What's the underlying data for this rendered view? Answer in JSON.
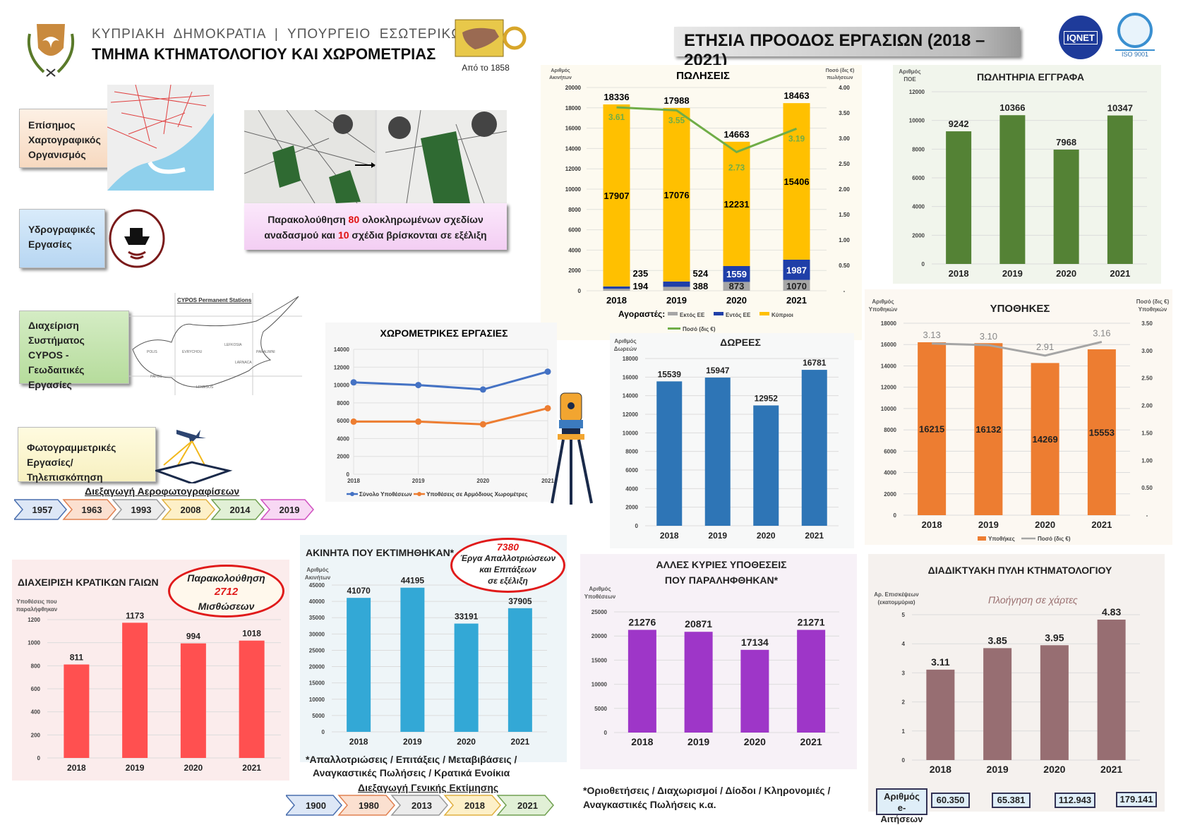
{
  "header": {
    "org_line": "ΚΥΠΡΙΑΚΗ  ΔΗΜΟΚΡΑΤΙΑ  |  ΥΠΟΥΡΓΕΙΟ  ΕΣΩΤΕΡΙΚΩΝ",
    "dept": "ΤΜΗΜΑ ΚΤΗΜΑΤΟΛΟΓΙΟΥ ΚΑΙ ΧΩΡΟΜΕΤΡΙΑΣ",
    "since": "Από το 1858",
    "title": "ΕΤΗΣΙΑ ΠΡΟΟΔΟΣ ΕΡΓΑΣΙΩΝ (2018 – 2021)",
    "logo_iqnet": "IQNET",
    "logo_iso": "ISO 9001"
  },
  "left": {
    "box_cartography": "Επίσημος Χαρτογραφικός Οργανισμός",
    "box_hydro": "Υδρογραφικές Εργασίες",
    "box_cypos": "Διαχείριση Συστήματος CYPOS - Γεωδαιτικές Εργασίες",
    "cypos_map_title": "CYPOS Permanent Stations",
    "box_photo": "Φωτογραμμετρικές Εργασίες/Τηλεπισκόπηση",
    "aerial_title": "Διεξαγωγή Αεροφωτογραφίσεων",
    "aerial_years": [
      "1957",
      "1963",
      "1993",
      "2008",
      "2014",
      "2019"
    ],
    "consolidation_pre": "Παρακολούθηση ",
    "consolidation_n1": "80",
    "consolidation_mid": " ολοκληρωμένων σχεδίων αναδασμού και ",
    "consolidation_n2": "10",
    "consolidation_post": " σχέδια βρίσκονται σε εξέλιξη"
  },
  "valuation": {
    "timeline_title": "Διεξαγωγή Γενικής Εκτίμησης",
    "years": [
      "1900",
      "1980",
      "2013",
      "2018",
      "2021"
    ],
    "footnote_1": "*Απαλλοτριώσεις / Επιτάξεις / Μεταβιβάσεις /",
    "footnote_2": "Αναγκαστικές Πωλήσεις / Κρατικά Ενοίκια",
    "oval_num": "7380",
    "oval_text": [
      "Έργα Απαλλοτριώσεων",
      "και Επιτάξεων",
      "σε εξέλιξη"
    ]
  },
  "state_land": {
    "oval_1": "Παρακολούθηση",
    "oval_num": "2712",
    "oval_2": "Μισθώσεων"
  },
  "other_cases": {
    "footnote_1": "*Οριοθετήσεις / Διαχωρισμοί / Δίοδοι / Κληρονομιές /",
    "footnote_2": "Αναγκαστικές Πωλήσεις κ.α."
  },
  "portal": {
    "subtitle": "Πλοήγηση σε χάρτες",
    "eapps_label_1": "Αριθμός",
    "eapps_label_2": "e-Αιτήσεων",
    "eapps": [
      "60.350",
      "65.381",
      "112.943",
      "179.141"
    ]
  },
  "colors": {
    "sales_cy": "#ffc000",
    "sales_eu": "#1f3fa8",
    "sales_noneu": "#a6a6a6",
    "sales_line": "#70ad47",
    "deeds": "#548235",
    "donations": "#2e75b6",
    "mortgages": "#ed7d31",
    "mort_line": "#a5a5a5",
    "survey_total": "#4472c4",
    "survey_dist": "#ed7d31",
    "state": "#ff5050",
    "valued": "#33a8d6",
    "other": "#9e36c8",
    "portal": "#976e72"
  },
  "chart_data": [
    {
      "id": "sales",
      "type": "bar",
      "stacked": true,
      "title": "ΠΩΛΗΣΕΙΣ",
      "ylabel": "Αριθμός Ακινήτων",
      "y2label": "Ποσό (δις €) πωλήσεων",
      "categories": [
        "2018",
        "2019",
        "2020",
        "2021"
      ],
      "ylim": [
        0,
        20000
      ],
      "yticks": [
        "0",
        "2000",
        "4000",
        "6000",
        "8000",
        "10000",
        "12000",
        "14000",
        "16000",
        "18000",
        "20000"
      ],
      "y2lim": [
        0,
        4
      ],
      "y2ticks": [
        "-",
        "0.50",
        "1.00",
        "1.50",
        "2.00",
        "2.50",
        "3.00",
        "3.50",
        "4.00"
      ],
      "legend_prefix": "Αγοραστές:",
      "series": [
        {
          "name": "Εκτός ΕΕ",
          "values": [
            194,
            388,
            873,
            1070
          ]
        },
        {
          "name": "Εντός ΕΕ",
          "values": [
            235,
            524,
            1559,
            1987
          ]
        },
        {
          "name": "Κύπριοι",
          "values": [
            17907,
            17076,
            12231,
            15406
          ]
        }
      ],
      "totals": [
        18336,
        17988,
        14663,
        18463
      ],
      "line": {
        "name": "Ποσό (δις €)",
        "values": [
          3.61,
          3.55,
          2.73,
          3.19
        ],
        "labels": [
          "3.61",
          "3.55",
          "2.73",
          "3.19"
        ]
      }
    },
    {
      "id": "deeds",
      "type": "bar",
      "title": "ΠΩΛΗΤΗΡΙΑ ΕΓΓΡΑΦΑ",
      "ylabel": "Αριθμός ΠΟΕ",
      "categories": [
        "2018",
        "2019",
        "2020",
        "2021"
      ],
      "values": [
        9242,
        10366,
        7968,
        10347
      ],
      "ylim": [
        0,
        12000
      ],
      "yticks": [
        "0",
        "2000",
        "4000",
        "6000",
        "8000",
        "10000",
        "12000"
      ]
    },
    {
      "id": "survey",
      "type": "line",
      "title": "ΧΩΡΟΜΕΤΡΙΚΕΣ ΕΡΓΑΣΙΕΣ",
      "x": [
        "2018",
        "2019",
        "2020",
        "2021"
      ],
      "ylim": [
        0,
        14000
      ],
      "yticks": [
        "0",
        "2000",
        "4000",
        "6000",
        "8000",
        "10000",
        "12000",
        "14000"
      ],
      "series": [
        {
          "name": "Σύνολο Υποθέσεων",
          "values": [
            10300,
            10000,
            9500,
            11500
          ]
        },
        {
          "name": "Υποθέσεις σε Αρμόδιους Χωρομέτρες",
          "values": [
            5900,
            5900,
            5600,
            7400
          ]
        }
      ]
    },
    {
      "id": "donations",
      "type": "bar",
      "title": "ΔΩΡΕΕΣ",
      "ylabel": "Αριθμός Δωρεών",
      "categories": [
        "2018",
        "2019",
        "2020",
        "2021"
      ],
      "values": [
        15539,
        15947,
        12952,
        16781
      ],
      "ylim": [
        0,
        18000
      ],
      "yticks": [
        "0",
        "2000",
        "4000",
        "6000",
        "8000",
        "10000",
        "12000",
        "14000",
        "16000",
        "18000"
      ]
    },
    {
      "id": "mortgages",
      "type": "bar",
      "title": "ΥΠΟΘΗΚΕΣ",
      "ylabel": "Αριθμός Υποθηκών",
      "y2label": "Ποσό (δις €) Υποθηκών",
      "categories": [
        "2018",
        "2019",
        "2020",
        "2021"
      ],
      "values": [
        16215,
        16132,
        14269,
        15553
      ],
      "ylim": [
        0,
        18000
      ],
      "yticks": [
        "0",
        "2000",
        "4000",
        "6000",
        "8000",
        "10000",
        "12000",
        "14000",
        "16000",
        "18000"
      ],
      "y2lim": [
        0,
        3.5
      ],
      "y2ticks": [
        "-",
        "0.50",
        "1.00",
        "1.50",
        "2.00",
        "2.50",
        "3.00",
        "3.50"
      ],
      "legend": [
        "Υποθήκες",
        "Ποσό (δις €)"
      ],
      "line": {
        "name": "Ποσό (δις €)",
        "values": [
          3.13,
          3.1,
          2.91,
          3.16
        ],
        "labels": [
          "3.13",
          "3.10",
          "2.91",
          "3.16"
        ]
      }
    },
    {
      "id": "state_land",
      "type": "bar",
      "title": "ΔΙΑΧΕΙΡΙΣΗ ΚΡΑΤΙΚΩΝ ΓΑΙΩΝ",
      "ylabel": "Υποθέσεις που παραλήφθηκαν",
      "categories": [
        "2018",
        "2019",
        "2020",
        "2021"
      ],
      "values": [
        811,
        1173,
        994,
        1018
      ],
      "ylim": [
        0,
        1200
      ],
      "yticks": [
        "0",
        "200",
        "400",
        "600",
        "800",
        "1000",
        "1200"
      ]
    },
    {
      "id": "valued",
      "type": "bar",
      "title": "ΑΚΙΝΗΤΑ ΠΟΥ ΕΚΤΙΜΗΘΗΚΑΝ*",
      "ylabel": "Αριθμός Ακινήτων",
      "categories": [
        "2018",
        "2019",
        "2020",
        "2021"
      ],
      "values": [
        41070,
        44195,
        33191,
        37905
      ],
      "ylim": [
        0,
        45000
      ],
      "yticks": [
        "0",
        "5000",
        "10000",
        "15000",
        "20000",
        "25000",
        "30000",
        "35000",
        "40000",
        "45000"
      ]
    },
    {
      "id": "other",
      "type": "bar",
      "title": "ΑΛΛΕΣ ΚΥΡΙΕΣ ΥΠΟΘΕΣΕΙΣ ΠΟΥ ΠΑΡΑΛΗΦΘΗΚΑΝ*",
      "ylabel": "Αριθμός Υποθέσεων",
      "categories": [
        "2018",
        "2019",
        "2020",
        "2021"
      ],
      "values": [
        21276,
        20871,
        17134,
        21271
      ],
      "ylim": [
        0,
        25000
      ],
      "yticks": [
        "0",
        "5000",
        "10000",
        "15000",
        "20000",
        "25000"
      ]
    },
    {
      "id": "portal",
      "type": "bar",
      "title": "ΔΙΑΔΙΚΤΥΑΚΗ ΠΥΛΗ ΚΤΗΜΑΤΟΛΟΓΙΟΥ",
      "ylabel": "Αρ. Επισκέψεων (εκατομμύρια)",
      "categories": [
        "2018",
        "2019",
        "2020",
        "2021"
      ],
      "values": [
        3.11,
        3.85,
        3.95,
        4.83
      ],
      "labels": [
        "3.11",
        "3.85",
        "3.95",
        "4.83"
      ],
      "ylim": [
        0,
        5
      ],
      "yticks": [
        "0",
        "1",
        "2",
        "3",
        "4",
        "5"
      ]
    }
  ]
}
